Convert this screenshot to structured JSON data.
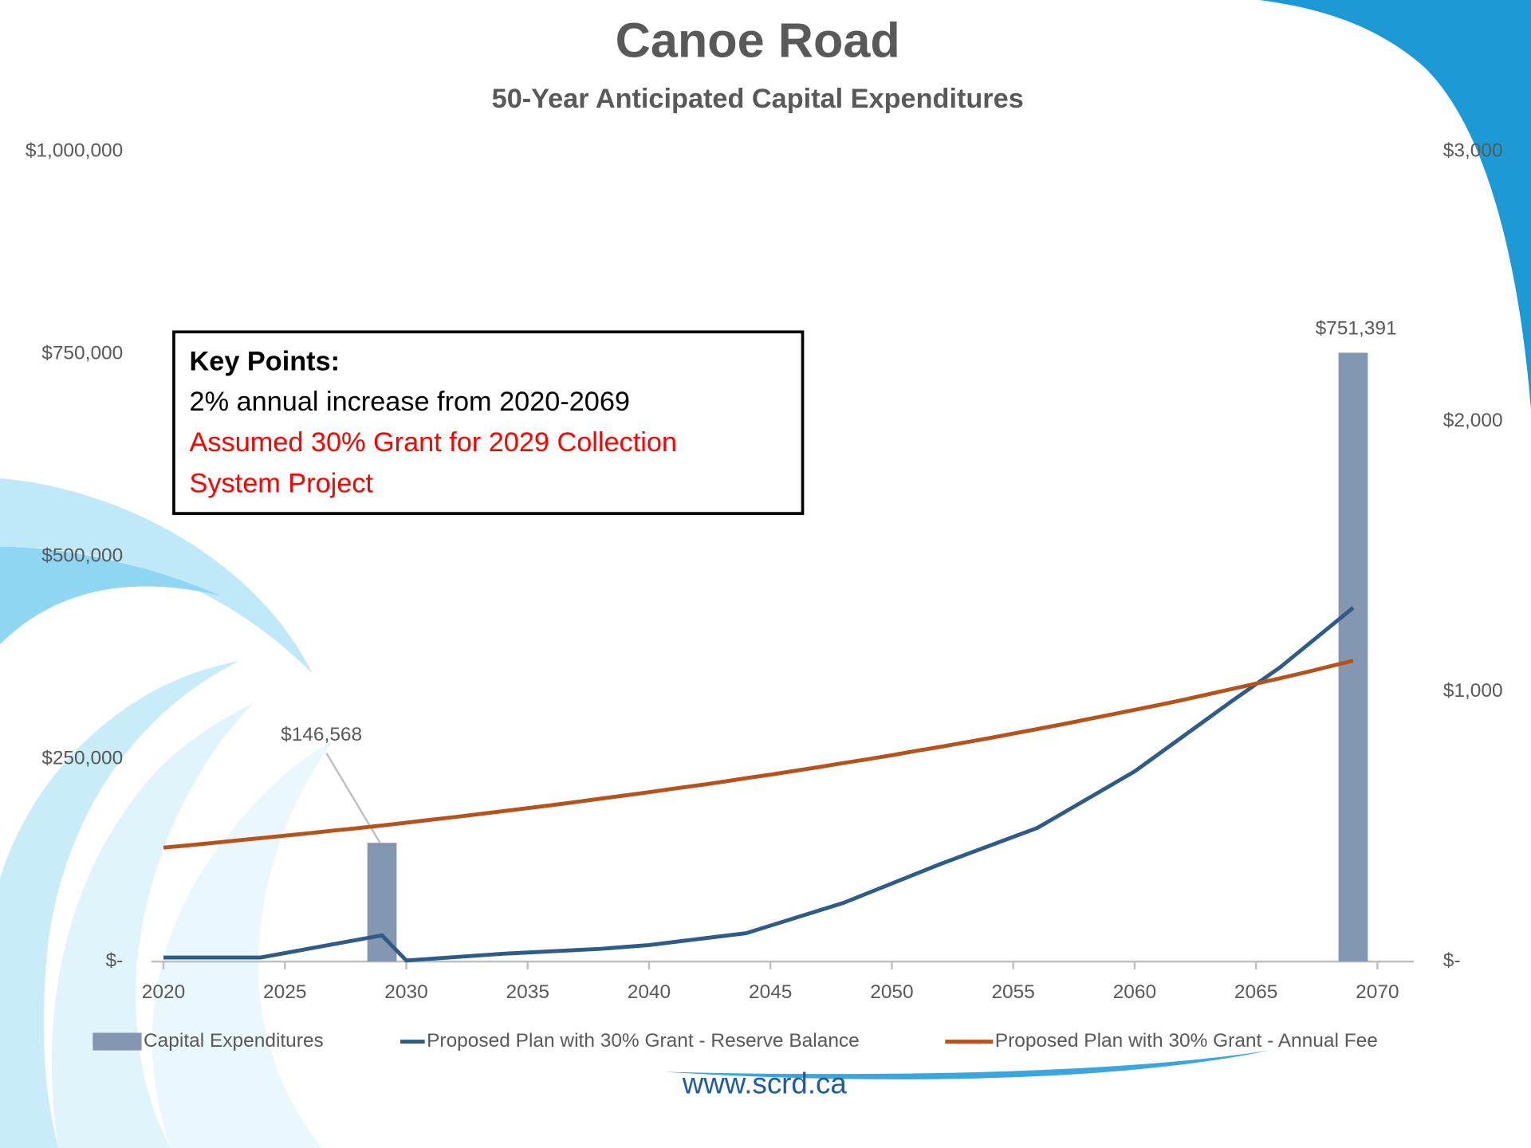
{
  "chart_data": {
    "type": "combo",
    "title": "Canoe Road",
    "subtitle": "50-Year Anticipated Capital Expenditures",
    "xlim": [
      2019.5,
      2071.5
    ],
    "xticks": [
      2020,
      2025,
      2030,
      2035,
      2040,
      2045,
      2050,
      2055,
      2060,
      2065,
      2070
    ],
    "ylim": [
      0,
      1000000
    ],
    "yticks": [
      {
        "value": 0,
        "label": "$-"
      },
      {
        "value": 250000,
        "label": "$250,000"
      },
      {
        "value": 500000,
        "label": "$500,000"
      },
      {
        "value": 750000,
        "label": "$750,000"
      },
      {
        "value": 1000000,
        "label": "$1,000,000"
      }
    ],
    "y2lim": [
      0,
      3000
    ],
    "y2ticks": [
      {
        "value": 0,
        "label": "$-"
      },
      {
        "value": 1000,
        "label": "$1,000"
      },
      {
        "value": 2000,
        "label": "$2,000"
      },
      {
        "value": 3000,
        "label": "$3,000"
      }
    ],
    "series": [
      {
        "name": "Capital Expenditures",
        "type": "bar",
        "color": "#8497b0",
        "x": [
          2029,
          2069
        ],
        "values": [
          146568,
          751391
        ],
        "value_labels": [
          "$146,568",
          "$751,391"
        ]
      },
      {
        "name": "Proposed Plan with 30% Grant - Reserve Balance",
        "type": "line",
        "axis": "y2",
        "color": "#2e5c87",
        "x": [
          2020,
          2024,
          2029,
          2030,
          2034,
          2038,
          2040,
          2044,
          2048,
          2052,
          2056,
          2060,
          2064,
          2066,
          2069
        ],
        "values": [
          15,
          15,
          97,
          4,
          29,
          47,
          61,
          105,
          217,
          361,
          495,
          704,
          964,
          1090,
          1310
        ]
      },
      {
        "name": "Proposed Plan with 30% Grant - Annual Fee",
        "type": "line",
        "axis": "y2",
        "color": "#b5531c",
        "x": [
          2020,
          2021,
          2022,
          2023,
          2024,
          2025,
          2026,
          2027,
          2028,
          2029,
          2030,
          2031,
          2032,
          2033,
          2034,
          2035,
          2036,
          2037,
          2038,
          2039,
          2040,
          2041,
          2042,
          2043,
          2044,
          2045,
          2046,
          2047,
          2048,
          2049,
          2050,
          2051,
          2052,
          2053,
          2054,
          2055,
          2056,
          2057,
          2058,
          2059,
          2060,
          2061,
          2062,
          2063,
          2064,
          2065,
          2066,
          2067,
          2068,
          2069
        ],
        "values": [
          422,
          430,
          439,
          448,
          457,
          466,
          475,
          485,
          494,
          504,
          514,
          525,
          535,
          546,
          557,
          568,
          579,
          591,
          603,
          615,
          627,
          640,
          652,
          665,
          679,
          692,
          706,
          720,
          735,
          749,
          764,
          780,
          795,
          811,
          827,
          844,
          861,
          878,
          896,
          914,
          932,
          950,
          969,
          989,
          1009,
          1029,
          1049,
          1070,
          1092,
          1114
        ]
      }
    ],
    "key_points": {
      "heading": "Key Points:",
      "items": [
        "2% annual increase from 2020-2069"
      ],
      "grant_note": [
        "Assumed 30% Grant for 2029 Collection",
        "System Project"
      ]
    }
  },
  "footer": "www.scrd.ca"
}
